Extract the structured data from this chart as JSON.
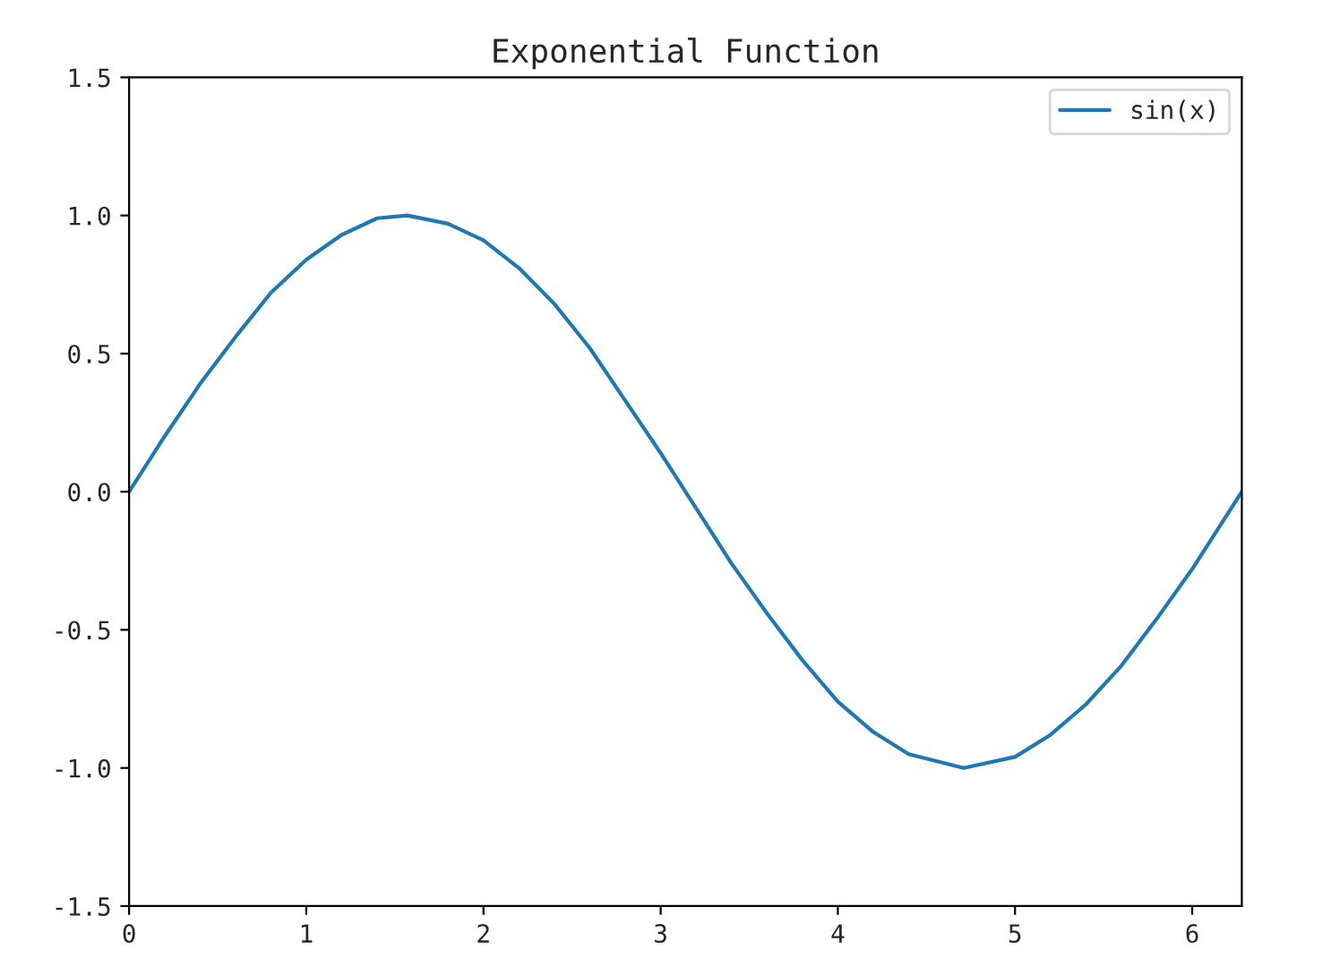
{
  "chart_data": {
    "type": "line",
    "title": "Exponential Function",
    "x": [
      0,
      0.2,
      0.4,
      0.6,
      0.8,
      1.0,
      1.2,
      1.4,
      1.57,
      1.8,
      2.0,
      2.2,
      2.4,
      2.6,
      2.8,
      3.0,
      3.2,
      3.4,
      3.6,
      3.8,
      4.0,
      4.2,
      4.4,
      4.71,
      5.0,
      5.2,
      5.4,
      5.6,
      5.8,
      6.0,
      6.2,
      6.28
    ],
    "series": [
      {
        "name": "sin(x)",
        "color": "#1f77b4",
        "values": [
          0,
          0.2,
          0.39,
          0.56,
          0.72,
          0.84,
          0.93,
          0.99,
          1.0,
          0.97,
          0.91,
          0.81,
          0.68,
          0.52,
          0.33,
          0.14,
          -0.06,
          -0.26,
          -0.44,
          -0.61,
          -0.76,
          -0.87,
          -0.95,
          -1.0,
          -0.96,
          -0.88,
          -0.77,
          -0.63,
          -0.46,
          -0.28,
          -0.08,
          0
        ]
      }
    ],
    "xlim": [
      0,
      6.28
    ],
    "xticks": [
      0,
      1,
      2,
      3,
      4,
      5,
      6
    ],
    "ylim": [
      -1.5,
      1.5
    ],
    "yticks": [
      {
        "value": -1.5,
        "label": "-1.5"
      },
      {
        "value": -1.0,
        "label": "-1.0"
      },
      {
        "value": -0.5,
        "label": "-0.5"
      },
      {
        "value": 0,
        "label": "0.0"
      },
      {
        "value": 0.5,
        "label": "0.5"
      },
      {
        "value": 1.0,
        "label": "1.0"
      },
      {
        "value": 1.5,
        "label": "1.5"
      }
    ],
    "legend": "top right",
    "grid": false,
    "line_style": "solid"
  }
}
